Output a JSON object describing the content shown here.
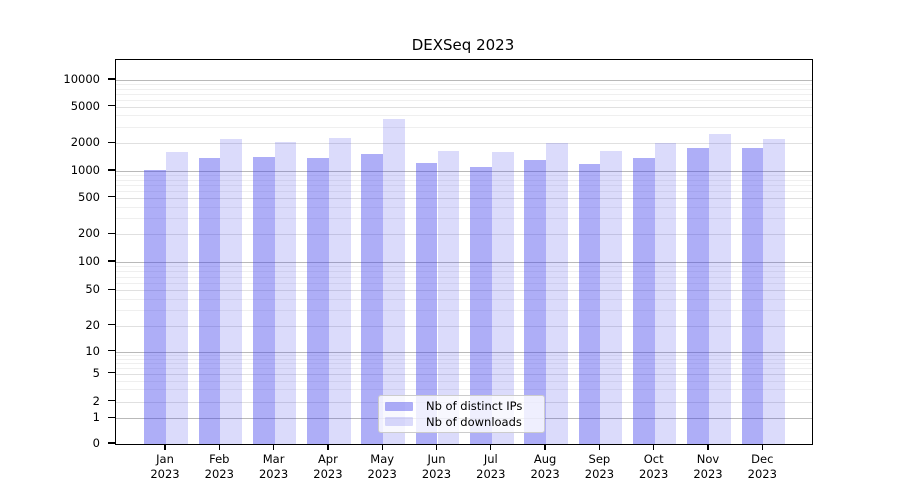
{
  "title": "DEXSeq 2023",
  "chart_data": {
    "type": "bar",
    "title": "DEXSeq 2023",
    "categories": [
      "Jan",
      "Feb",
      "Mar",
      "Apr",
      "May",
      "Jun",
      "Jul",
      "Aug",
      "Sep",
      "Oct",
      "Nov",
      "Dec"
    ],
    "x_tick_year": "2023",
    "series": [
      {
        "name": "Nb of distinct IPs",
        "color": "rgba(62,62,235,0.42)",
        "values": [
          1020,
          1380,
          1420,
          1380,
          1550,
          1210,
          1110,
          1320,
          1180,
          1400,
          1760,
          1760
        ]
      },
      {
        "name": "Nb of downloads",
        "color": "rgba(62,62,235,0.19)",
        "values": [
          1590,
          2200,
          2060,
          2290,
          3650,
          1660,
          1620,
          2000,
          1650,
          2010,
          2500,
          2250
        ]
      }
    ],
    "y_axis": {
      "scale": "symlog",
      "ticks": [
        10000,
        5000,
        2000,
        1000,
        500,
        200,
        100,
        50,
        20,
        10,
        5,
        2,
        1,
        0
      ],
      "range": [
        0,
        16000
      ]
    },
    "xlabel": "",
    "ylabel": "",
    "grid": true,
    "legend_position": "lower center"
  }
}
